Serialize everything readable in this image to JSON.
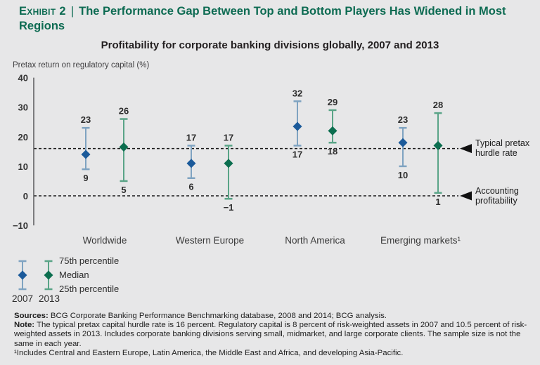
{
  "header": {
    "exhibit_label": "Exhibit 2",
    "separator": "|",
    "title": "The Performance Gap Between Top and Bottom Players Has Widened in Most Regions"
  },
  "chart_data": {
    "type": "scatter",
    "subtype": "percentile_range_bars",
    "title": "Profitability for corporate banking divisions globally, 2007 and 2013",
    "ylabel": "Pretax return on regulatory capital (%)",
    "ylim": [
      -10,
      40
    ],
    "yticks": [
      40,
      30,
      20,
      10,
      0,
      -10
    ],
    "grid": false,
    "categories": [
      "Worldwide",
      "Western Europe",
      "North America",
      "Emerging markets¹"
    ],
    "series": [
      {
        "name": "2007",
        "marker_color": "#1b5a9a",
        "line_color": "#7fa3c1",
        "p75": [
          23,
          17,
          32,
          23
        ],
        "median": [
          14,
          11,
          23.5,
          18
        ],
        "p25": [
          9,
          6,
          17,
          10
        ]
      },
      {
        "name": "2013",
        "marker_color": "#0c6e4f",
        "line_color": "#5aa487",
        "p75": [
          26,
          17,
          29,
          28
        ],
        "median": [
          16.5,
          11,
          22,
          17
        ],
        "p25": [
          5,
          -1,
          18,
          1
        ]
      }
    ],
    "reference_lines": [
      {
        "value": 16,
        "label": "Typical pretax hurdle rate"
      },
      {
        "value": 0,
        "label": "Accounting profitability"
      }
    ],
    "legend": {
      "entries": [
        "2007",
        "2013"
      ],
      "row_labels": [
        "75th percentile",
        "Median",
        "25th percentile"
      ],
      "position": "bottom-left"
    }
  },
  "footer": {
    "sources_label": "Sources:",
    "sources_text": " BCG Corporate Banking Performance Benchmarking database, 2008 and 2014; BCG analysis.",
    "note_label": "Note:",
    "note_text": " The typical pretax capital hurdle rate is 16 percent. Regulatory capital is 8 percent of risk-weighted assets in 2007 and 10.5 percent of risk-weighted assets in 2013. Includes corporate banking divisions serving small, midmarket, and large corporate clients. The sample size is not the same in each year.",
    "footnote": "¹Includes Central and Eastern Europe, Latin America, the Middle East and Africa, and developing Asia-Pacific."
  },
  "colors": {
    "background": "#e7e7e8",
    "title_green": "#0d6b52",
    "text_dark": "#231f20",
    "axis_gray": "#58595b",
    "reference_line": "#1a1a1a",
    "series_2007_marker": "#1b5a9a",
    "series_2007_line": "#7fa3c1",
    "series_2013_marker": "#0c6e4f",
    "series_2013_line": "#5aa487"
  }
}
